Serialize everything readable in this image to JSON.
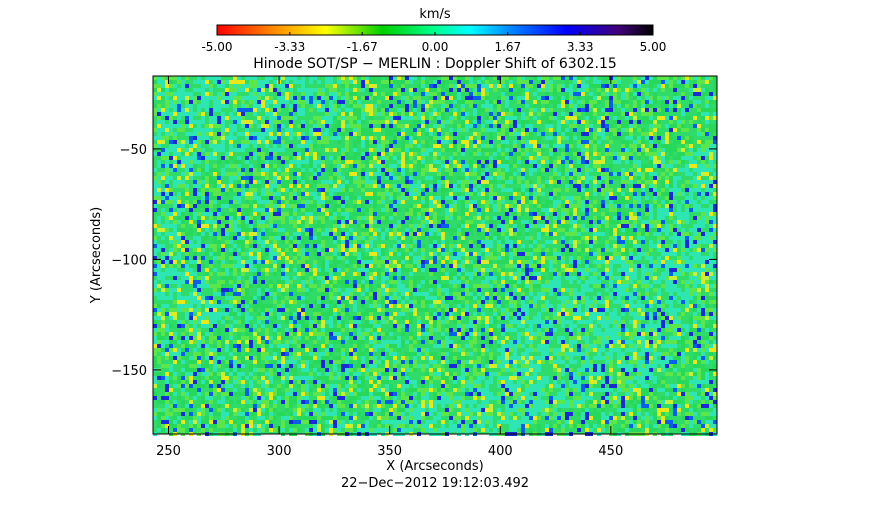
{
  "colorbar": {
    "unit": "km/s",
    "min": -5.0,
    "max": 5.0,
    "tick_labels": [
      "-5.00",
      "-3.33",
      "-1.67",
      "0.00",
      "1.67",
      "3.33",
      "5.00"
    ],
    "tick_values": [
      -5.0,
      -3.33,
      -1.67,
      0.0,
      1.67,
      3.33,
      5.0
    ],
    "colormap": [
      "#ff0000",
      "#ff8000",
      "#ffff00",
      "#00d000",
      "#00ff90",
      "#00ffff",
      "#0080ff",
      "#0000ff",
      "#40007a",
      "#000000"
    ]
  },
  "chart_data": {
    "type": "heatmap",
    "title": "Hinode SOT/SP − MERLIN : Doppler Shift of 6302.15",
    "xlabel": "X (Arcseconds)",
    "ylabel": "Y (Arcseconds)",
    "xlim": [
      243,
      498
    ],
    "ylim": [
      -179,
      -17
    ],
    "x_ticks": [
      250,
      300,
      350,
      400,
      450
    ],
    "x_tick_labels": [
      "250",
      "300",
      "350",
      "400",
      "450"
    ],
    "y_ticks": [
      -50,
      -100,
      -150
    ],
    "y_tick_labels": [
      "−50",
      "−100",
      "−150"
    ],
    "value_range": [
      -5.0,
      5.0
    ],
    "value_unit": "km/s",
    "grid": false
  },
  "footer": {
    "timestamp": "22−Dec−2012 19:12:03.492"
  }
}
